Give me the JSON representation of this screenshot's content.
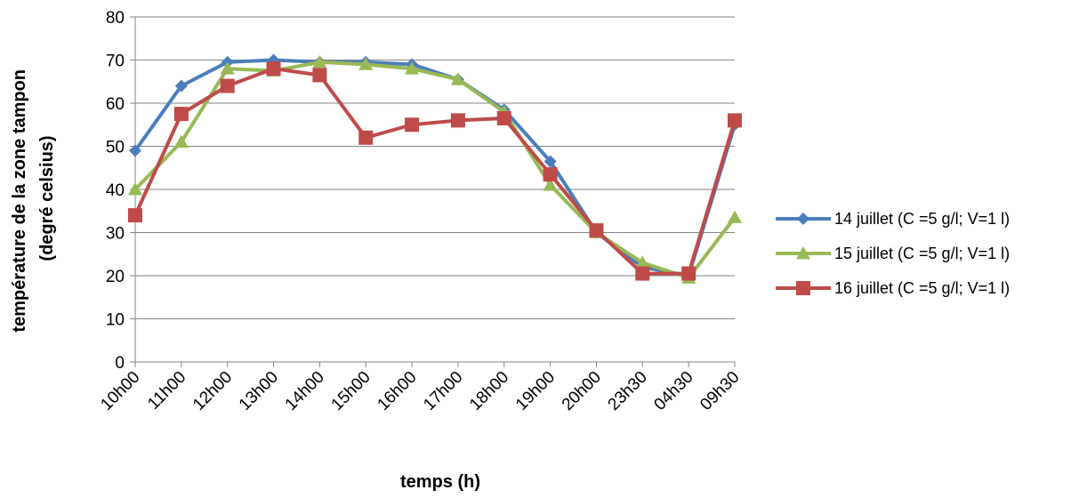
{
  "chart_data": {
    "type": "line",
    "title": "",
    "xlabel": "temps (h)",
    "ylabel_lines": [
      "température de la zone tampon",
      "(degré celsius)"
    ],
    "categories": [
      "10h00",
      "11h00",
      "12h00",
      "13h00",
      "14h00",
      "15h00",
      "16h00",
      "17h00",
      "18h00",
      "19h00",
      "20h00",
      "23h30",
      "04h30",
      "09h30"
    ],
    "ylim": [
      0,
      80
    ],
    "yticks": [
      "0",
      "10",
      "20",
      "30",
      "40",
      "50",
      "60",
      "70",
      "80"
    ],
    "grid": true,
    "legend_position": "right",
    "series": [
      {
        "name": "14 juillet (C =5 g/l; V=1 l)",
        "color": "#4A7EBB",
        "marker": "diamond",
        "values": [
          49,
          64,
          69.5,
          70,
          69.5,
          69.5,
          69,
          65.5,
          58.5,
          46.5,
          30,
          22,
          20,
          55
        ]
      },
      {
        "name": "15 juillet (C =5 g/l; V=1 l)",
        "color": "#98B954",
        "marker": "triangle",
        "values": [
          40,
          51,
          68,
          67.5,
          69.5,
          69,
          68,
          65.5,
          58,
          41,
          30,
          23,
          19.5,
          33.5
        ]
      },
      {
        "name": "16 juillet (C =5 g/l; V=1 l)",
        "color": "#BE4B48",
        "marker": "square",
        "values": [
          34,
          57.5,
          64,
          68,
          66.5,
          52,
          55,
          56,
          56.5,
          43.5,
          30.5,
          20.5,
          20.5,
          56
        ]
      }
    ]
  }
}
